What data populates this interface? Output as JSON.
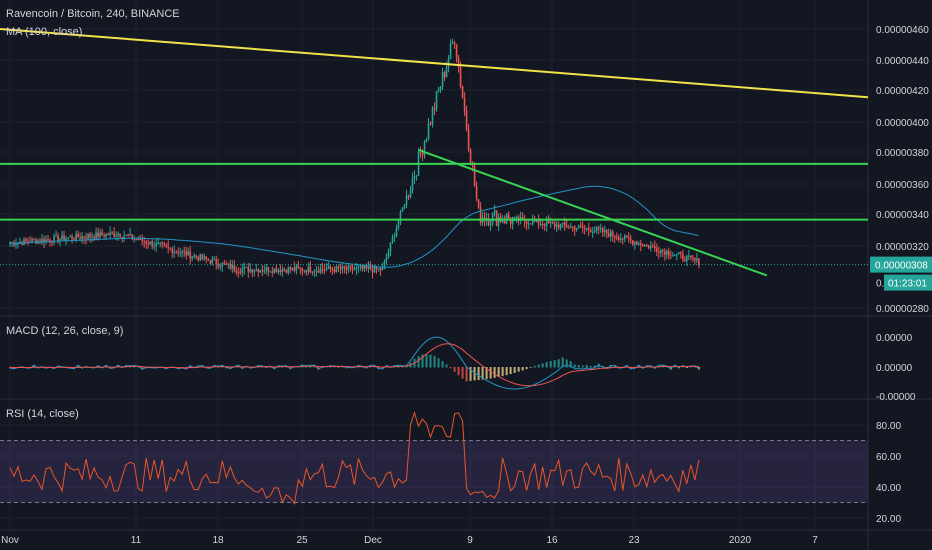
{
  "header": {
    "symbol": "Ravencoin / Bitcoin, 240, BINANCE",
    "ma_label": "MA (100, close)"
  },
  "macd": {
    "label": "MACD (12, 26, close, 9)"
  },
  "rsi": {
    "label": "RSI (14, close)"
  },
  "price_axis": {
    "ticks": [
      "0.00000460",
      "0.00000440",
      "0.00000420",
      "0.00000400",
      "0.00000380",
      "0.00000360",
      "0.00000340",
      "0.00000320",
      "0.00000280"
    ],
    "last_price": "0.00000308",
    "countdown": "01:23:01",
    "partial_tick": "0."
  },
  "macd_axis": {
    "ticks": [
      "0.00000",
      "0.00000",
      "-0.00000"
    ]
  },
  "rsi_axis": {
    "ticks": [
      "80.00",
      "60.00",
      "40.00",
      "20.00"
    ]
  },
  "time_axis": {
    "ticks": [
      "Nov",
      "11",
      "18",
      "25",
      "Dec",
      "9",
      "16",
      "23",
      "2020",
      "7"
    ]
  },
  "colors": {
    "background": "#131722",
    "up": "#26a69a",
    "down": "#ef5350",
    "ma": "#2196c8",
    "resistance": "#39d353",
    "trend": "#f2e34a",
    "rsi_line": "#e8562a",
    "rsi_band": "#7b5fc4",
    "last_price": "#26a69a"
  },
  "chart_data": {
    "type": "candlestick",
    "symbol": "Ravencoin / Bitcoin",
    "timeframe": "240",
    "exchange": "BINANCE",
    "price_ylim": [
      2.8e-06,
      4.6e-06
    ],
    "horizontal_levels": [
      3.73e-06,
      3.37e-06
    ],
    "trendlines": [
      {
        "from": [
          "Nov 1",
          4.6e-06
        ],
        "to": [
          "Jan 8",
          4.16e-06
        ]
      },
      {
        "from": [
          "Dec 5",
          3.82e-06
        ],
        "to": [
          "Jan 3",
          3.01e-06
        ]
      }
    ],
    "key_points": [
      {
        "date": "Nov 1",
        "price": 3.22e-06
      },
      {
        "date": "Nov 10",
        "price": 3.28e-06
      },
      {
        "date": "Nov 20",
        "price": 3.05e-06
      },
      {
        "date": "Dec 2",
        "price": 3.05e-06
      },
      {
        "date": "Dec 5",
        "price": 3.75e-06
      },
      {
        "date": "Dec 8",
        "price": 4.55e-06
      },
      {
        "date": "Dec 10",
        "price": 3.4e-06
      },
      {
        "date": "Dec 20",
        "price": 3.3e-06
      },
      {
        "date": "Dec 29",
        "price": 3.08e-06
      }
    ],
    "rsi_levels": [
      70,
      30
    ],
    "rsi_ylim": [
      20,
      90
    ]
  }
}
